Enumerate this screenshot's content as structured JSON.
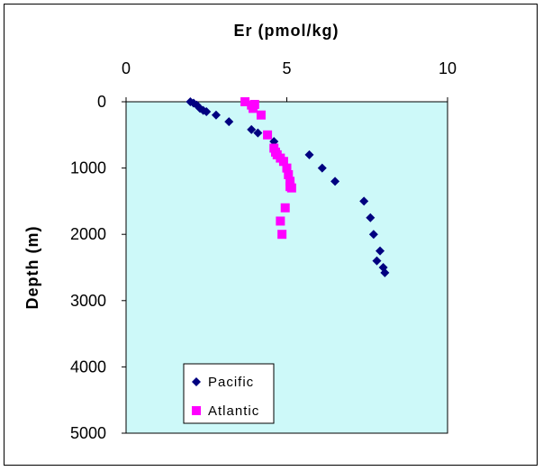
{
  "chart_data": {
    "type": "scatter",
    "title": "",
    "xlabel": "Er (pmol/kg)",
    "ylabel": "Depth (m)",
    "xlim": [
      0,
      10
    ],
    "ylim": [
      0,
      5000
    ],
    "y_inverted": true,
    "x_axis_position": "top",
    "xticks": [
      "0",
      "5",
      "10"
    ],
    "yticks": [
      "0",
      "1000",
      "2000",
      "3000",
      "4000",
      "5000"
    ],
    "grid": false,
    "legend_position": "bottom-center",
    "plot_background": "#cdf9f9",
    "series": [
      {
        "name": "Pacific",
        "marker": "diamond",
        "color": "#000080",
        "x": [
          2.0,
          2.1,
          2.2,
          2.3,
          2.4,
          2.5,
          2.8,
          3.2,
          3.9,
          4.1,
          4.6,
          5.7,
          6.1,
          6.5,
          7.4,
          7.6,
          7.7,
          7.9,
          7.8,
          8.0,
          8.05
        ],
        "y": [
          0,
          20,
          50,
          100,
          130,
          150,
          200,
          300,
          420,
          470,
          600,
          800,
          1000,
          1200,
          1500,
          1750,
          2000,
          2250,
          2400,
          2500,
          2580
        ]
      },
      {
        "name": "Atlantic",
        "marker": "square",
        "color": "#ff00ff",
        "x": [
          3.7,
          3.9,
          3.95,
          4.0,
          4.2,
          4.4,
          4.6,
          4.65,
          4.7,
          4.8,
          4.9,
          5.0,
          5.05,
          5.1,
          5.15,
          5.1,
          4.95,
          4.8,
          4.85
        ],
        "y": [
          0,
          50,
          100,
          40,
          200,
          500,
          700,
          760,
          800,
          850,
          900,
          1000,
          1100,
          1200,
          1300,
          1280,
          1600,
          1800,
          2000
        ]
      }
    ]
  }
}
